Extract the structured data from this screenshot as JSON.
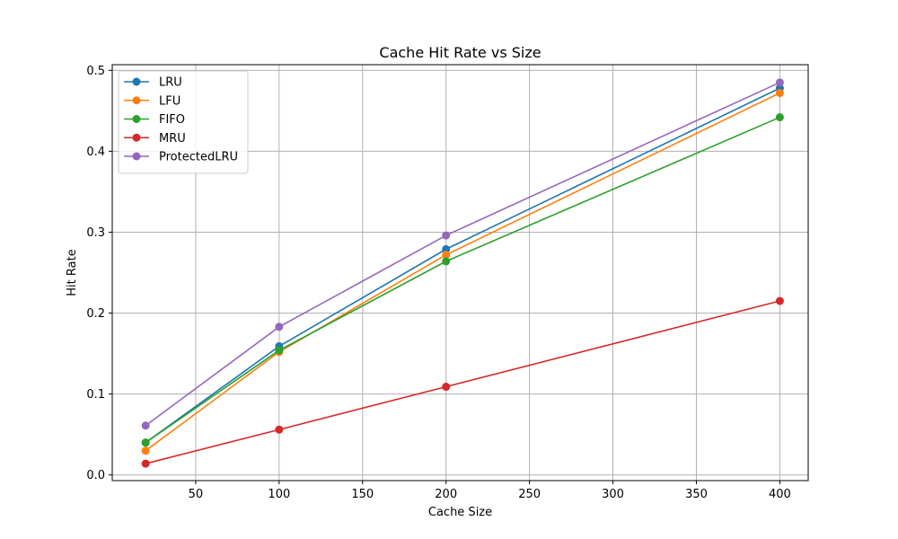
{
  "chart_data": {
    "type": "line",
    "title": "Cache Hit Rate vs Size",
    "xlabel": "Cache Size",
    "ylabel": "Hit Rate",
    "x": [
      20,
      100,
      200,
      400
    ],
    "xlim": [
      0,
      417
    ],
    "ylim": [
      -0.007,
      0.507
    ],
    "xticks": [
      50,
      100,
      150,
      200,
      250,
      300,
      350,
      400
    ],
    "yticks": [
      0.0,
      0.1,
      0.2,
      0.3,
      0.4,
      0.5
    ],
    "ytick_labels": [
      "0.0",
      "0.1",
      "0.2",
      "0.3",
      "0.4",
      "0.5"
    ],
    "grid": true,
    "legend_position": "top-left",
    "series": [
      {
        "name": "LRU",
        "color": "#1f77b4",
        "values": [
          0.04,
          0.159,
          0.279,
          0.478
        ]
      },
      {
        "name": "LFU",
        "color": "#ff7f0e",
        "values": [
          0.03,
          0.152,
          0.272,
          0.472
        ]
      },
      {
        "name": "FIFO",
        "color": "#2ca02c",
        "values": [
          0.04,
          0.154,
          0.264,
          0.442
        ]
      },
      {
        "name": "MRU",
        "color": "#d62728",
        "values": [
          0.014,
          0.056,
          0.109,
          0.215
        ]
      },
      {
        "name": "ProtectedLRU",
        "color": "#9467bd",
        "values": [
          0.061,
          0.183,
          0.296,
          0.485
        ]
      }
    ]
  }
}
